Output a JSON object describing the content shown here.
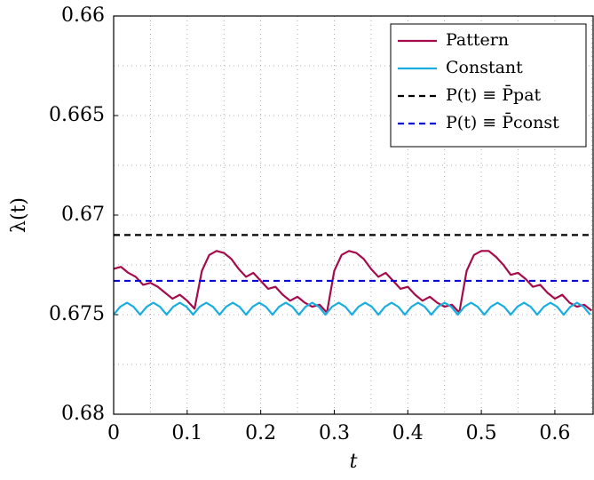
{
  "chart_data": {
    "type": "line",
    "xlabel": "t",
    "ylabel": "λ(t)",
    "xlim": [
      0,
      0.652
    ],
    "xticks": [
      0,
      0.1,
      0.2,
      0.3,
      0.4,
      0.5,
      0.6
    ],
    "ylim": [
      0.66,
      0.68
    ],
    "yticks": [
      0.66,
      0.665,
      0.67,
      0.675,
      0.68
    ],
    "y_inverted": true,
    "minor_xticks": [
      0.05,
      0.15,
      0.25,
      0.35,
      0.45,
      0.55,
      0.65
    ],
    "minor_yticks": [
      0.6625,
      0.6675,
      0.6725,
      0.6775
    ],
    "grid": true,
    "legend": "top-right",
    "series": [
      {
        "name": "Pattern",
        "color": "#a50a4a",
        "dashed": false,
        "x": [
          0,
          0.01,
          0.02,
          0.03,
          0.04,
          0.05,
          0.06,
          0.07,
          0.08,
          0.09,
          0.1,
          0.11,
          0.12,
          0.13,
          0.14,
          0.15,
          0.16,
          0.17,
          0.18,
          0.19,
          0.2,
          0.21,
          0.22,
          0.23,
          0.24,
          0.25,
          0.26,
          0.27,
          0.28,
          0.29,
          0.3,
          0.31,
          0.32,
          0.33,
          0.34,
          0.35,
          0.36,
          0.37,
          0.38,
          0.39,
          0.4,
          0.41,
          0.42,
          0.43,
          0.44,
          0.45,
          0.46,
          0.47,
          0.48,
          0.49,
          0.5,
          0.51,
          0.52,
          0.53,
          0.54,
          0.55,
          0.56,
          0.57,
          0.58,
          0.59,
          0.6,
          0.61,
          0.62,
          0.63,
          0.64,
          0.65
        ],
        "values": [
          0.6727,
          0.6726,
          0.6729,
          0.6731,
          0.6735,
          0.6734,
          0.6736,
          0.6739,
          0.6742,
          0.674,
          0.6743,
          0.6747,
          0.6728,
          0.672,
          0.6718,
          0.6719,
          0.6722,
          0.6727,
          0.6731,
          0.6729,
          0.6733,
          0.6737,
          0.6736,
          0.674,
          0.6743,
          0.6741,
          0.6744,
          0.6746,
          0.6745,
          0.6749,
          0.6728,
          0.672,
          0.6718,
          0.6719,
          0.6722,
          0.6727,
          0.6731,
          0.6729,
          0.6733,
          0.6737,
          0.6736,
          0.674,
          0.6743,
          0.6741,
          0.6744,
          0.6746,
          0.6745,
          0.6749,
          0.6728,
          0.672,
          0.6718,
          0.6718,
          0.6721,
          0.6725,
          0.673,
          0.6729,
          0.6732,
          0.6736,
          0.6735,
          0.6739,
          0.6742,
          0.674,
          0.6744,
          0.6746,
          0.6745,
          0.6748
        ]
      },
      {
        "name": "Constant",
        "color": "#1aaee0",
        "dashed": false,
        "x": [
          0,
          0.009,
          0.018,
          0.027,
          0.036,
          0.045,
          0.054,
          0.063,
          0.072,
          0.081,
          0.09,
          0.099,
          0.108,
          0.117,
          0.126,
          0.135,
          0.144,
          0.153,
          0.162,
          0.171,
          0.18,
          0.189,
          0.198,
          0.207,
          0.216,
          0.225,
          0.234,
          0.243,
          0.252,
          0.261,
          0.27,
          0.279,
          0.288,
          0.297,
          0.306,
          0.315,
          0.324,
          0.333,
          0.342,
          0.351,
          0.36,
          0.369,
          0.378,
          0.387,
          0.396,
          0.405,
          0.414,
          0.423,
          0.432,
          0.441,
          0.45,
          0.459,
          0.468,
          0.477,
          0.486,
          0.495,
          0.504,
          0.513,
          0.522,
          0.531,
          0.54,
          0.549,
          0.558,
          0.567,
          0.576,
          0.585,
          0.594,
          0.603,
          0.612,
          0.621,
          0.63,
          0.639,
          0.648
        ],
        "values": [
          0.675,
          0.6746,
          0.6744,
          0.6746,
          0.675,
          0.6746,
          0.6744,
          0.6746,
          0.675,
          0.6746,
          0.6744,
          0.6746,
          0.675,
          0.6746,
          0.6744,
          0.6746,
          0.675,
          0.6746,
          0.6744,
          0.6746,
          0.675,
          0.6746,
          0.6744,
          0.6746,
          0.675,
          0.6746,
          0.6744,
          0.6746,
          0.675,
          0.6746,
          0.6744,
          0.6746,
          0.675,
          0.6746,
          0.6744,
          0.6746,
          0.675,
          0.6746,
          0.6744,
          0.6746,
          0.675,
          0.6746,
          0.6744,
          0.6746,
          0.675,
          0.6746,
          0.6744,
          0.6746,
          0.675,
          0.6746,
          0.6744,
          0.6746,
          0.675,
          0.6746,
          0.6744,
          0.6746,
          0.675,
          0.6746,
          0.6744,
          0.6746,
          0.675,
          0.6746,
          0.6744,
          0.6746,
          0.675,
          0.6746,
          0.6744,
          0.6746,
          0.675,
          0.6746,
          0.6744,
          0.6746,
          0.675
        ]
      },
      {
        "name": "P(t) ≡ P̄pat",
        "color": "#000000",
        "dashed": true,
        "x": [
          0,
          0.652
        ],
        "values": [
          0.671,
          0.671
        ]
      },
      {
        "name": "P(t) ≡ P̄const",
        "color": "#0a0ad0",
        "dashed": true,
        "x": [
          0,
          0.652
        ],
        "values": [
          0.6733,
          0.6733
        ]
      }
    ]
  }
}
